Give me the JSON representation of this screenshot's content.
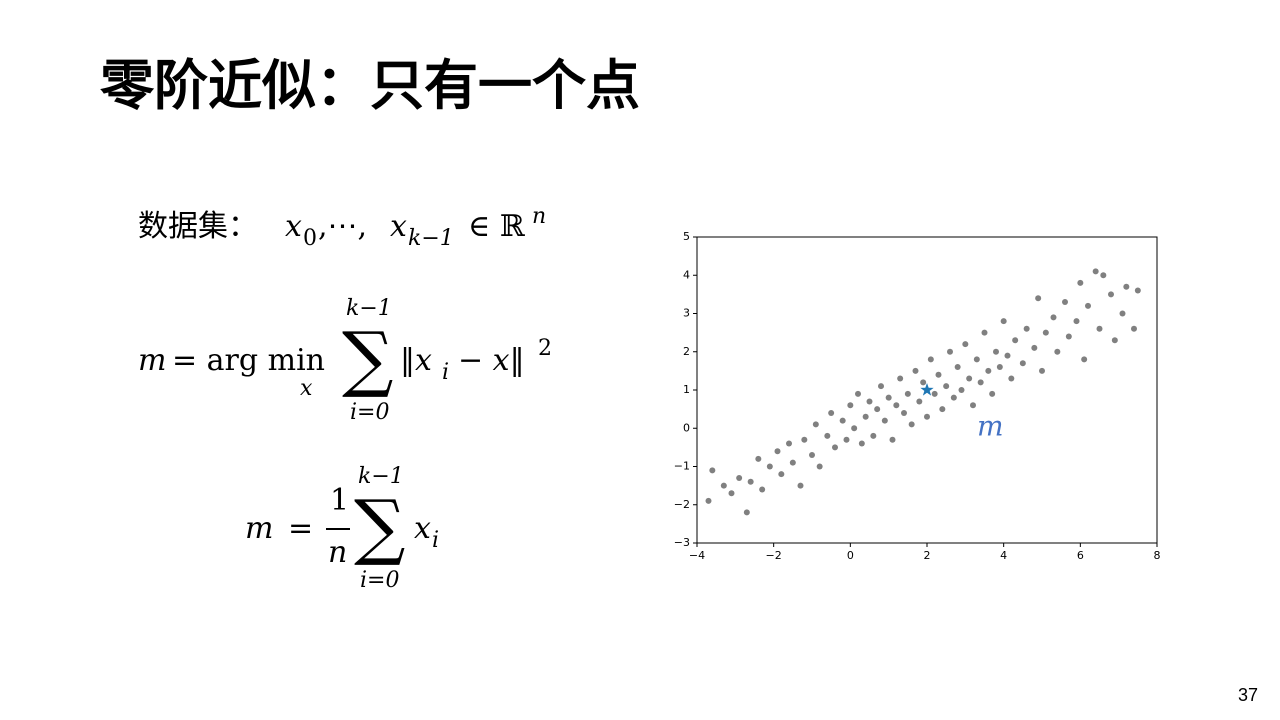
{
  "title": "零阶近似：只有一个点",
  "page_number": "37",
  "formulas": [
    {
      "parts": [
        "数据集：",
        "x",
        "0",
        ",⋯,",
        "x",
        "k−1",
        "∈ ℝ",
        "n"
      ]
    },
    {
      "parts": [
        "m",
        "= arg min",
        "x",
        "∑",
        "k−1",
        "i=0",
        "‖x",
        "i",
        "− x‖",
        "2"
      ]
    },
    {
      "parts": [
        "m",
        "=",
        "1",
        "n",
        "∑",
        "k−1",
        "i=0",
        "x",
        "i"
      ]
    }
  ],
  "chart_data": {
    "type": "scatter",
    "annotation": "m",
    "annotation_color": "#4472c4",
    "xlim": [
      -4,
      8
    ],
    "ylim": [
      -3,
      5
    ],
    "xticks": [
      {
        "value": -4,
        "label": "−4"
      },
      {
        "value": -2,
        "label": "−2"
      },
      0,
      2,
      4,
      6,
      8
    ],
    "yticks": [
      {
        "value": -3,
        "label": "−3"
      },
      {
        "value": -2,
        "label": "−2"
      },
      {
        "value": -1,
        "label": "−1"
      },
      0,
      1,
      2,
      3,
      4,
      5
    ],
    "series": [
      {
        "color": "#808080",
        "marker": "dot",
        "x": [
          -3.7,
          -3.6,
          -3.3,
          -3.1,
          -2.9,
          -2.7,
          -2.6,
          -2.4,
          -2.3,
          -2.1,
          -1.9,
          -1.8,
          -1.6,
          -1.5,
          -1.3,
          -1.2,
          -1.0,
          -0.9,
          -0.8,
          -0.6,
          -0.5,
          -0.4,
          -0.2,
          -0.1,
          0.0,
          0.1,
          0.2,
          0.3,
          0.4,
          0.5,
          0.6,
          0.7,
          0.8,
          0.9,
          1.0,
          1.1,
          1.2,
          1.3,
          1.4,
          1.5,
          1.6,
          1.7,
          1.8,
          1.9,
          2.0,
          2.1,
          2.2,
          2.3,
          2.4,
          2.5,
          2.6,
          2.7,
          2.8,
          2.9,
          3.0,
          3.1,
          3.2,
          3.3,
          3.4,
          3.5,
          3.6,
          3.7,
          3.8,
          3.9,
          4.0,
          4.1,
          4.2,
          4.3,
          4.5,
          4.6,
          4.8,
          4.9,
          5.0,
          5.1,
          5.3,
          5.4,
          5.6,
          5.7,
          5.9,
          6.0,
          6.1,
          6.2,
          6.4,
          6.5,
          6.6,
          6.8,
          6.9,
          7.1,
          7.2,
          7.4,
          7.5
        ],
        "y": [
          -1.9,
          -1.1,
          -1.5,
          -1.7,
          -1.3,
          -2.2,
          -1.4,
          -0.8,
          -1.6,
          -1.0,
          -0.6,
          -1.2,
          -0.4,
          -0.9,
          -1.5,
          -0.3,
          -0.7,
          0.1,
          -1.0,
          -0.2,
          0.4,
          -0.5,
          0.2,
          -0.3,
          0.6,
          0.0,
          0.9,
          -0.4,
          0.3,
          0.7,
          -0.2,
          0.5,
          1.1,
          0.2,
          0.8,
          -0.3,
          0.6,
          1.3,
          0.4,
          0.9,
          0.1,
          1.5,
          0.7,
          1.2,
          0.3,
          1.8,
          0.9,
          1.4,
          0.5,
          1.1,
          2.0,
          0.8,
          1.6,
          1.0,
          2.2,
          1.3,
          0.6,
          1.8,
          1.2,
          2.5,
          1.5,
          0.9,
          2.0,
          1.6,
          2.8,
          1.9,
          1.3,
          2.3,
          1.7,
          2.6,
          2.1,
          3.4,
          1.5,
          2.5,
          2.9,
          2.0,
          3.3,
          2.4,
          2.8,
          3.8,
          1.8,
          3.2,
          4.1,
          2.6,
          4.0,
          3.5,
          2.3,
          3.0,
          3.7,
          2.6,
          3.6
        ]
      },
      {
        "color": "#1f77b4",
        "marker": "star",
        "x": [
          2
        ],
        "y": [
          1
        ]
      }
    ]
  }
}
